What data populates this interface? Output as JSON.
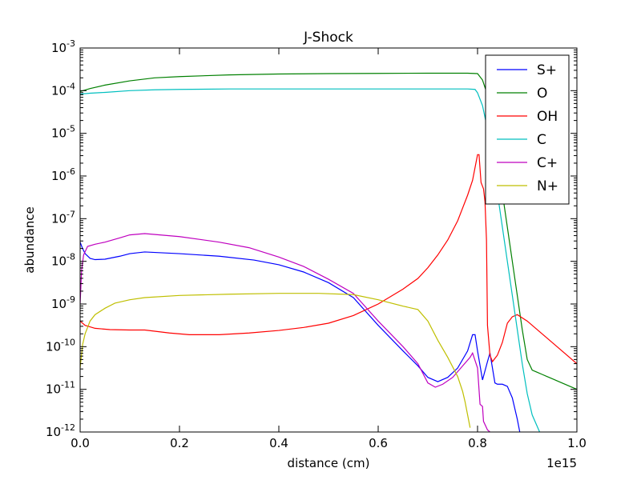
{
  "chart_data": {
    "type": "line",
    "title": "J-Shock",
    "xlabel": "distance (cm)",
    "ylabel": "abundance",
    "x_offset_label": "1e15",
    "xscale": "linear",
    "yscale": "log",
    "xlim": [
      0.0,
      1.0
    ],
    "ylim": [
      1e-12,
      0.001
    ],
    "x_ticks": [
      0.0,
      0.2,
      0.4,
      0.6,
      0.8,
      1.0
    ],
    "x_tick_labels": [
      "0.0",
      "0.2",
      "0.4",
      "0.6",
      "0.8",
      "1.0"
    ],
    "y_ticks": [
      {
        "exp": -12,
        "base": "10",
        "sup": "-12"
      },
      {
        "exp": -11,
        "base": "10",
        "sup": "-11"
      },
      {
        "exp": -10,
        "base": "10",
        "sup": "-10"
      },
      {
        "exp": -9,
        "base": "10",
        "sup": "-9"
      },
      {
        "exp": -8,
        "base": "10",
        "sup": "-8"
      },
      {
        "exp": -7,
        "base": "10",
        "sup": "-7"
      },
      {
        "exp": -6,
        "base": "10",
        "sup": "-6"
      },
      {
        "exp": -5,
        "base": "10",
        "sup": "-5"
      },
      {
        "exp": -4,
        "base": "10",
        "sup": "-4"
      },
      {
        "exp": -3,
        "base": "10",
        "sup": "-3"
      }
    ],
    "legend_position": "top-right",
    "series": [
      {
        "name": "S+",
        "color": "#0000ff",
        "points": [
          [
            0.0,
            -7.55
          ],
          [
            0.005,
            -7.7
          ],
          [
            0.01,
            -7.82
          ],
          [
            0.02,
            -7.93
          ],
          [
            0.03,
            -7.96
          ],
          [
            0.05,
            -7.95
          ],
          [
            0.08,
            -7.88
          ],
          [
            0.1,
            -7.82
          ],
          [
            0.13,
            -7.78
          ],
          [
            0.2,
            -7.82
          ],
          [
            0.28,
            -7.88
          ],
          [
            0.35,
            -7.97
          ],
          [
            0.4,
            -8.08
          ],
          [
            0.45,
            -8.25
          ],
          [
            0.5,
            -8.5
          ],
          [
            0.55,
            -8.85
          ],
          [
            0.6,
            -9.5
          ],
          [
            0.65,
            -10.1
          ],
          [
            0.68,
            -10.45
          ],
          [
            0.7,
            -10.72
          ],
          [
            0.72,
            -10.82
          ],
          [
            0.74,
            -10.72
          ],
          [
            0.76,
            -10.5
          ],
          [
            0.78,
            -10.1
          ],
          [
            0.79,
            -9.72
          ],
          [
            0.795,
            -9.72
          ],
          [
            0.8,
            -10.1
          ],
          [
            0.81,
            -10.78
          ],
          [
            0.82,
            -10.35
          ],
          [
            0.825,
            -10.15
          ],
          [
            0.83,
            -10.5
          ],
          [
            0.835,
            -10.85
          ],
          [
            0.84,
            -10.88
          ],
          [
            0.85,
            -10.88
          ],
          [
            0.86,
            -10.93
          ],
          [
            0.87,
            -11.2
          ],
          [
            0.88,
            -11.7
          ],
          [
            0.885,
            -12.0
          ]
        ]
      },
      {
        "name": "O",
        "color": "#008000",
        "points": [
          [
            0.0,
            -4.02
          ],
          [
            0.02,
            -3.95
          ],
          [
            0.05,
            -3.87
          ],
          [
            0.1,
            -3.77
          ],
          [
            0.15,
            -3.7
          ],
          [
            0.2,
            -3.67
          ],
          [
            0.3,
            -3.63
          ],
          [
            0.4,
            -3.61
          ],
          [
            0.5,
            -3.6
          ],
          [
            0.6,
            -3.595
          ],
          [
            0.7,
            -3.59
          ],
          [
            0.78,
            -3.59
          ],
          [
            0.8,
            -3.6
          ],
          [
            0.81,
            -3.75
          ],
          [
            0.82,
            -4.1
          ],
          [
            0.83,
            -4.8
          ],
          [
            0.84,
            -5.6
          ],
          [
            0.85,
            -6.4
          ],
          [
            0.86,
            -7.2
          ],
          [
            0.87,
            -8.0
          ],
          [
            0.88,
            -8.8
          ],
          [
            0.89,
            -9.6
          ],
          [
            0.9,
            -10.3
          ],
          [
            0.91,
            -10.55
          ],
          [
            0.92,
            -10.6
          ],
          [
            0.93,
            -10.65
          ],
          [
            0.94,
            -10.7
          ],
          [
            0.95,
            -10.75
          ],
          [
            0.97,
            -10.85
          ],
          [
            1.0,
            -11.0
          ]
        ]
      },
      {
        "name": "OH",
        "color": "#ff0000",
        "points": [
          [
            0.0,
            -9.4
          ],
          [
            0.01,
            -9.5
          ],
          [
            0.03,
            -9.57
          ],
          [
            0.06,
            -9.6
          ],
          [
            0.1,
            -9.61
          ],
          [
            0.13,
            -9.61
          ],
          [
            0.18,
            -9.68
          ],
          [
            0.22,
            -9.72
          ],
          [
            0.28,
            -9.72
          ],
          [
            0.34,
            -9.68
          ],
          [
            0.4,
            -9.62
          ],
          [
            0.45,
            -9.55
          ],
          [
            0.5,
            -9.45
          ],
          [
            0.55,
            -9.27
          ],
          [
            0.6,
            -9.0
          ],
          [
            0.65,
            -8.65
          ],
          [
            0.68,
            -8.4
          ],
          [
            0.7,
            -8.15
          ],
          [
            0.72,
            -7.85
          ],
          [
            0.74,
            -7.5
          ],
          [
            0.76,
            -7.05
          ],
          [
            0.78,
            -6.45
          ],
          [
            0.79,
            -6.1
          ],
          [
            0.8,
            -5.5
          ],
          [
            0.803,
            -5.5
          ],
          [
            0.807,
            -6.15
          ],
          [
            0.812,
            -6.3
          ],
          [
            0.815,
            -6.6
          ],
          [
            0.818,
            -7.5
          ],
          [
            0.82,
            -9.5
          ],
          [
            0.825,
            -10.2
          ],
          [
            0.83,
            -10.35
          ],
          [
            0.84,
            -10.2
          ],
          [
            0.85,
            -9.9
          ],
          [
            0.86,
            -9.45
          ],
          [
            0.87,
            -9.3
          ],
          [
            0.88,
            -9.25
          ],
          [
            0.9,
            -9.4
          ],
          [
            0.93,
            -9.7
          ],
          [
            0.96,
            -10.0
          ],
          [
            1.0,
            -10.4
          ]
        ]
      },
      {
        "name": "C",
        "color": "#00bfbf",
        "points": [
          [
            0.0,
            -4.08
          ],
          [
            0.02,
            -4.06
          ],
          [
            0.05,
            -4.04
          ],
          [
            0.1,
            -4.0
          ],
          [
            0.15,
            -3.98
          ],
          [
            0.2,
            -3.97
          ],
          [
            0.3,
            -3.96
          ],
          [
            0.5,
            -3.96
          ],
          [
            0.7,
            -3.96
          ],
          [
            0.78,
            -3.96
          ],
          [
            0.795,
            -3.97
          ],
          [
            0.8,
            -4.05
          ],
          [
            0.81,
            -4.35
          ],
          [
            0.82,
            -4.9
          ],
          [
            0.83,
            -5.6
          ],
          [
            0.84,
            -6.4
          ],
          [
            0.85,
            -7.2
          ],
          [
            0.86,
            -8.0
          ],
          [
            0.87,
            -8.8
          ],
          [
            0.88,
            -9.6
          ],
          [
            0.89,
            -10.4
          ],
          [
            0.9,
            -11.1
          ],
          [
            0.91,
            -11.6
          ],
          [
            0.925,
            -12.0
          ]
        ]
      },
      {
        "name": "C+",
        "color": "#bf00bf",
        "points": [
          [
            0.0,
            -9.0
          ],
          [
            0.003,
            -8.2
          ],
          [
            0.007,
            -7.85
          ],
          [
            0.015,
            -7.65
          ],
          [
            0.03,
            -7.6
          ],
          [
            0.05,
            -7.55
          ],
          [
            0.08,
            -7.45
          ],
          [
            0.1,
            -7.38
          ],
          [
            0.13,
            -7.35
          ],
          [
            0.2,
            -7.42
          ],
          [
            0.28,
            -7.55
          ],
          [
            0.34,
            -7.68
          ],
          [
            0.4,
            -7.9
          ],
          [
            0.45,
            -8.12
          ],
          [
            0.5,
            -8.42
          ],
          [
            0.55,
            -8.75
          ],
          [
            0.6,
            -9.4
          ],
          [
            0.65,
            -10.0
          ],
          [
            0.68,
            -10.4
          ],
          [
            0.7,
            -10.85
          ],
          [
            0.715,
            -10.95
          ],
          [
            0.73,
            -10.88
          ],
          [
            0.75,
            -10.72
          ],
          [
            0.77,
            -10.45
          ],
          [
            0.785,
            -10.25
          ],
          [
            0.79,
            -10.15
          ],
          [
            0.8,
            -10.5
          ],
          [
            0.805,
            -11.35
          ],
          [
            0.81,
            -11.4
          ],
          [
            0.812,
            -11.75
          ],
          [
            0.82,
            -11.95
          ],
          [
            0.83,
            -12.05
          ]
        ]
      },
      {
        "name": "N+",
        "color": "#bfbf00",
        "points": [
          [
            0.0,
            -10.5
          ],
          [
            0.005,
            -9.95
          ],
          [
            0.01,
            -9.7
          ],
          [
            0.02,
            -9.4
          ],
          [
            0.03,
            -9.25
          ],
          [
            0.05,
            -9.1
          ],
          [
            0.07,
            -8.98
          ],
          [
            0.1,
            -8.9
          ],
          [
            0.13,
            -8.85
          ],
          [
            0.2,
            -8.8
          ],
          [
            0.3,
            -8.77
          ],
          [
            0.4,
            -8.75
          ],
          [
            0.48,
            -8.75
          ],
          [
            0.55,
            -8.78
          ],
          [
            0.6,
            -8.9
          ],
          [
            0.65,
            -9.05
          ],
          [
            0.68,
            -9.13
          ],
          [
            0.7,
            -9.4
          ],
          [
            0.72,
            -9.85
          ],
          [
            0.74,
            -10.25
          ],
          [
            0.76,
            -10.7
          ],
          [
            0.77,
            -11.05
          ],
          [
            0.775,
            -11.3
          ],
          [
            0.78,
            -11.6
          ],
          [
            0.785,
            -11.9
          ]
        ]
      }
    ]
  }
}
